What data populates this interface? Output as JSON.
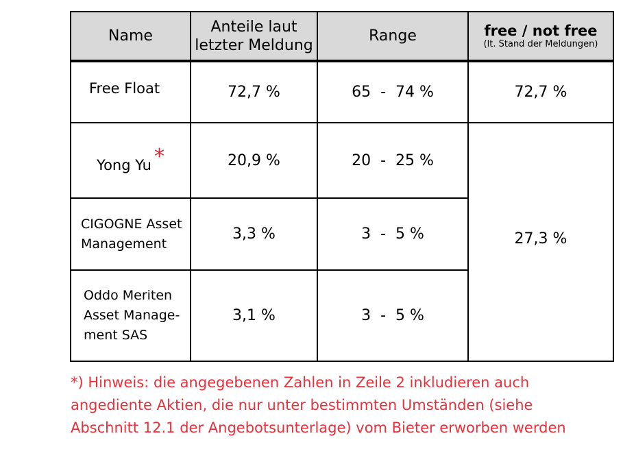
{
  "table": {
    "headers": {
      "name": "Name",
      "shares_line1": "Anteile laut",
      "shares_line2": "letzter Meldung",
      "range": "Range",
      "free_main": "free / not free",
      "free_sub": "(lt. Stand der Meldungen)"
    },
    "rows": [
      {
        "name": "Free Float",
        "share": "72,7 %",
        "range": "65  -  74 %"
      },
      {
        "name": "Yong Yu",
        "asterisk": "*",
        "share": "20,9 %",
        "range": "20  -  25 %"
      },
      {
        "name_line1": "CIGOGNE Asset",
        "name_line2": "Management",
        "share": "3,3 %",
        "range": "3  -  5 %"
      },
      {
        "name_line1": "Oddo Meriten",
        "name_line2": "Asset Manage-",
        "name_line3": "ment SAS",
        "share": "3,1 %",
        "range": "3  -  5 %"
      }
    ],
    "free_values": {
      "free": "72,7 %",
      "not_free": "27,3 %"
    }
  },
  "note": {
    "line1": "*) Hinweis: die angegebenen Zahlen in Zeile 2 inkludieren auch",
    "line2": "angediente Aktien, die nur unter bestimmten Umständen (siehe",
    "line3": "Abschnitt 12.1 der Angebotsunterlage) vom Bieter erworben werden"
  },
  "colors": {
    "header_bg": "#d9d9d9",
    "border": "#000000",
    "note_text": "#e8303a",
    "asterisk": "#d9232e"
  }
}
